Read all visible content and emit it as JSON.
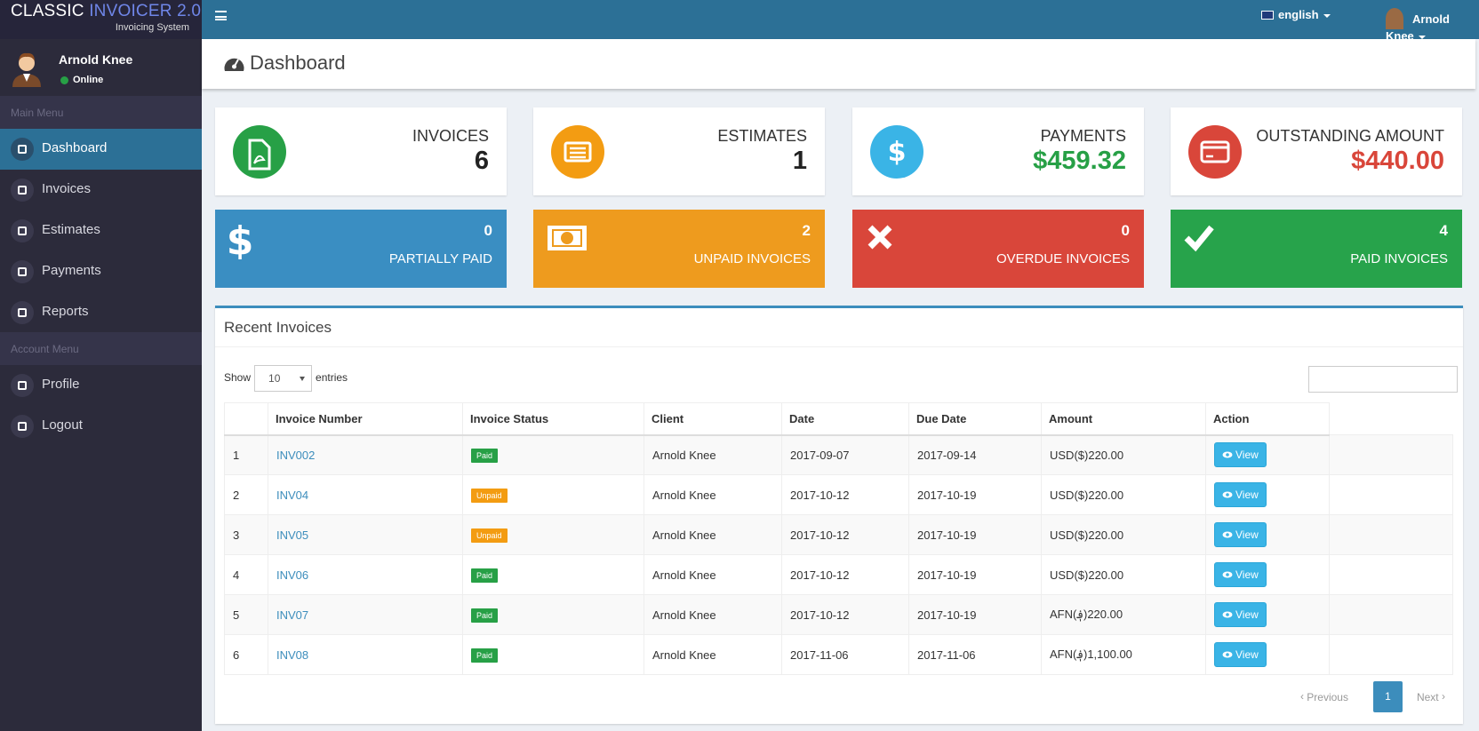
{
  "brand": {
    "name_a": "CLASSIC",
    "name_b": "INVOICER 2.0",
    "subtitle": "Invoicing System"
  },
  "user": {
    "name": "Arnold Knee",
    "status": "Online"
  },
  "sidebar": {
    "main_label": "Main Menu",
    "main_items": [
      "Dashboard",
      "Invoices",
      "Estimates",
      "Payments",
      "Reports"
    ],
    "account_label": "Account Menu",
    "account_items": [
      "Profile",
      "Logout"
    ]
  },
  "topbar": {
    "language": "english",
    "user": "Arnold Knee"
  },
  "page_title": "Dashboard",
  "stats": [
    {
      "label": "INVOICES",
      "value": "6",
      "color": "#27a046",
      "value_color": "#222222"
    },
    {
      "label": "ESTIMATES",
      "value": "1",
      "color": "#f39c12",
      "value_color": "#222222"
    },
    {
      "label": "PAYMENTS",
      "value": "$459.32",
      "color": "#3ab4e6",
      "value_color": "#27a046"
    },
    {
      "label": "OUTSTANDING AMOUNT",
      "value": "$440.00",
      "color": "#d9463a",
      "value_color": "#d9463a"
    }
  ],
  "tiles": [
    {
      "value": "0",
      "label": "PARTIALLY PAID",
      "color": "#3a8ec2"
    },
    {
      "value": "2",
      "label": "UNPAID INVOICES",
      "color": "#ee9b1e"
    },
    {
      "value": "0",
      "label": "OVERDUE INVOICES",
      "color": "#d9463a"
    },
    {
      "value": "4",
      "label": "PAID INVOICES",
      "color": "#27a34b"
    }
  ],
  "recent": {
    "title": "Recent Invoices",
    "show": "Show",
    "length": "10",
    "entries": "entries",
    "columns": [
      "Invoice Number",
      "Invoice Status",
      "Client",
      "Date",
      "Due Date",
      "Amount",
      "Action"
    ],
    "rows": [
      {
        "no": "1",
        "invoice": "INV002",
        "status": "Paid",
        "status_color": "#27a046",
        "client": "Arnold Knee",
        "date": "2017-09-07",
        "due": "2017-09-14",
        "amount": "USD($)220.00",
        "action": "View"
      },
      {
        "no": "2",
        "invoice": "INV04",
        "status": "Unpaid",
        "status_color": "#f39c12",
        "client": "Arnold Knee",
        "date": "2017-10-12",
        "due": "2017-10-19",
        "amount": "USD($)220.00",
        "action": "View"
      },
      {
        "no": "3",
        "invoice": "INV05",
        "status": "Unpaid",
        "status_color": "#f39c12",
        "client": "Arnold Knee",
        "date": "2017-10-12",
        "due": "2017-10-19",
        "amount": "USD($)220.00",
        "action": "View"
      },
      {
        "no": "4",
        "invoice": "INV06",
        "status": "Paid",
        "status_color": "#27a046",
        "client": "Arnold Knee",
        "date": "2017-10-12",
        "due": "2017-10-19",
        "amount": "USD($)220.00",
        "action": "View"
      },
      {
        "no": "5",
        "invoice": "INV07",
        "status": "Paid",
        "status_color": "#27a046",
        "client": "Arnold Knee",
        "date": "2017-10-12",
        "due": "2017-10-19",
        "amount": "AFN(؋)220.00",
        "action": "View"
      },
      {
        "no": "6",
        "invoice": "INV08",
        "status": "Paid",
        "status_color": "#27a046",
        "client": "Arnold Knee",
        "date": "2017-11-06",
        "due": "2017-11-06",
        "amount": "AFN(؋)1,100.00",
        "action": "View"
      }
    ],
    "previous": "Previous",
    "page": "1",
    "next": "Next"
  }
}
